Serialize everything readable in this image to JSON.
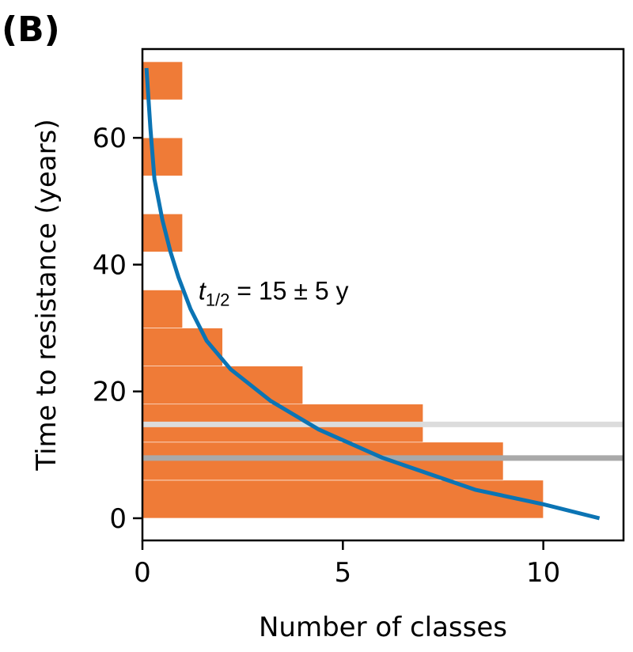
{
  "panel_label": "(B)",
  "chart_data": {
    "type": "bar",
    "orientation": "horizontal",
    "xlabel": "Number of classes",
    "ylabel": "Time to resistance (years)",
    "xlim": [
      0,
      12
    ],
    "ylim": [
      -3.5,
      74
    ],
    "xticks": [
      0,
      5,
      10
    ],
    "yticks": [
      0,
      20,
      40,
      60
    ],
    "bins": [
      {
        "y0": 0,
        "y1": 6,
        "count": 10
      },
      {
        "y0": 6,
        "y1": 12,
        "count": 9
      },
      {
        "y0": 12,
        "y1": 18,
        "count": 7
      },
      {
        "y0": 18,
        "y1": 24,
        "count": 4
      },
      {
        "y0": 24,
        "y1": 30,
        "count": 2
      },
      {
        "y0": 30,
        "y1": 36,
        "count": 1
      },
      {
        "y0": 42,
        "y1": 48,
        "count": 1
      },
      {
        "y0": 54,
        "y1": 60,
        "count": 1
      },
      {
        "y0": 66,
        "y1": 72,
        "count": 1
      }
    ],
    "fit_curve": {
      "x": [
        0.1,
        0.2,
        0.3,
        0.5,
        0.7,
        0.9,
        1.2,
        1.6,
        2.2,
        3.2,
        4.4,
        6.0,
        8.3,
        10.0,
        11.4
      ],
      "y": [
        71,
        61.5,
        53.5,
        47,
        42,
        38,
        33,
        28,
        23.5,
        18.5,
        14,
        9.5,
        4.5,
        2.2,
        0
      ]
    },
    "hlines": [
      {
        "y": 14.8,
        "color": "#dcdcdc"
      },
      {
        "y": 9.5,
        "color": "#a9a9a9"
      }
    ],
    "annotation": {
      "prefix": "t",
      "subscript": "1/2",
      "text": " = 15 ± 5 y",
      "x": 1.4,
      "y": 34.5
    },
    "colors": {
      "bar": "#ef7b37",
      "curve": "#0b74b4",
      "axis": "#000000"
    },
    "grid": false
  }
}
